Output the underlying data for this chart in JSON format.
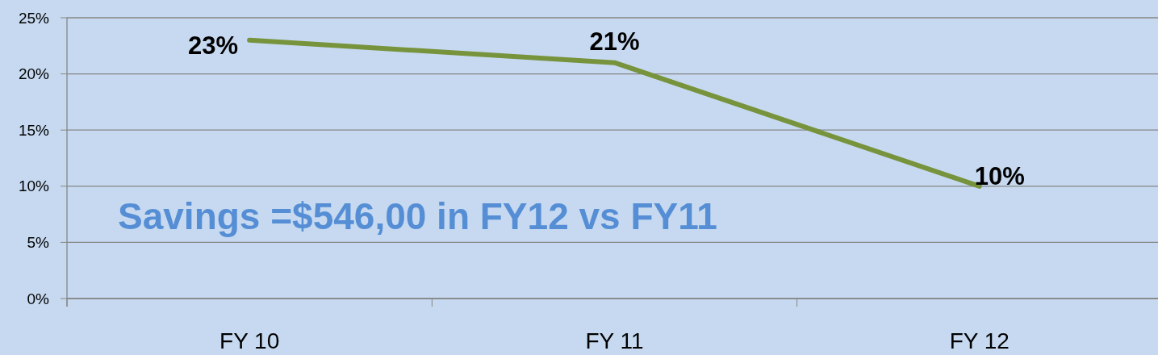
{
  "chart_data": {
    "type": "line",
    "categories": [
      "FY 10",
      "FY 11",
      "FY 12"
    ],
    "series": [
      {
        "color": "#77933c",
        "values": [
          23,
          21,
          10
        ],
        "value_labels": [
          "23%",
          "21%",
          "10%"
        ]
      }
    ],
    "ylim": [
      0,
      25
    ],
    "yticks": [
      {
        "value": 0,
        "label": "0%"
      },
      {
        "value": 5,
        "label": "5%"
      },
      {
        "value": 10,
        "label": "10%"
      },
      {
        "value": 15,
        "label": "15%"
      },
      {
        "value": 20,
        "label": "20%"
      },
      {
        "value": 25,
        "label": "25%"
      }
    ],
    "grid": "y",
    "marker": "none",
    "line_style": "solid",
    "annotations": [
      "Savings =$546,00 in FY12 vs FY11"
    ]
  }
}
